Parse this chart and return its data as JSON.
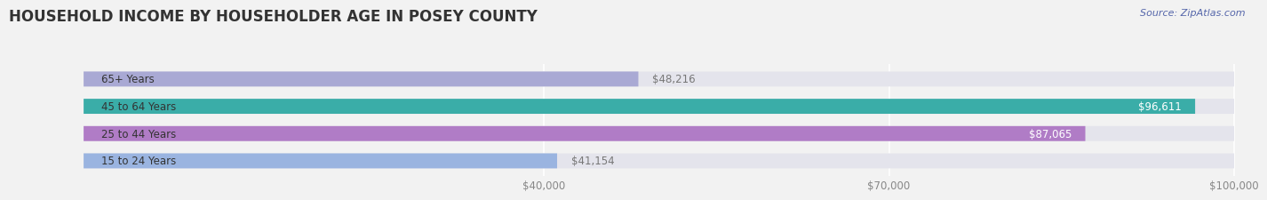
{
  "title": "HOUSEHOLD INCOME BY HOUSEHOLDER AGE IN POSEY COUNTY",
  "source": "Source: ZipAtlas.com",
  "categories": [
    "15 to 24 Years",
    "25 to 44 Years",
    "45 to 64 Years",
    "65+ Years"
  ],
  "values": [
    41154,
    87065,
    96611,
    48216
  ],
  "bar_colors": [
    "#9ab4e0",
    "#b07cc6",
    "#3aada8",
    "#a9a9d4"
  ],
  "background_color": "#f2f2f2",
  "bar_bg_color": "#e4e4ec",
  "xlim_min": 0,
  "xlim_max": 100000,
  "xticks": [
    40000,
    70000,
    100000
  ],
  "xtick_labels": [
    "$40,000",
    "$70,000",
    "$100,000"
  ],
  "value_labels": [
    "$41,154",
    "$87,065",
    "$96,611",
    "$48,216"
  ],
  "title_fontsize": 12,
  "label_fontsize": 8.5,
  "value_fontsize": 8.5,
  "bar_height": 0.55,
  "fig_width": 14.06,
  "fig_height": 2.33
}
